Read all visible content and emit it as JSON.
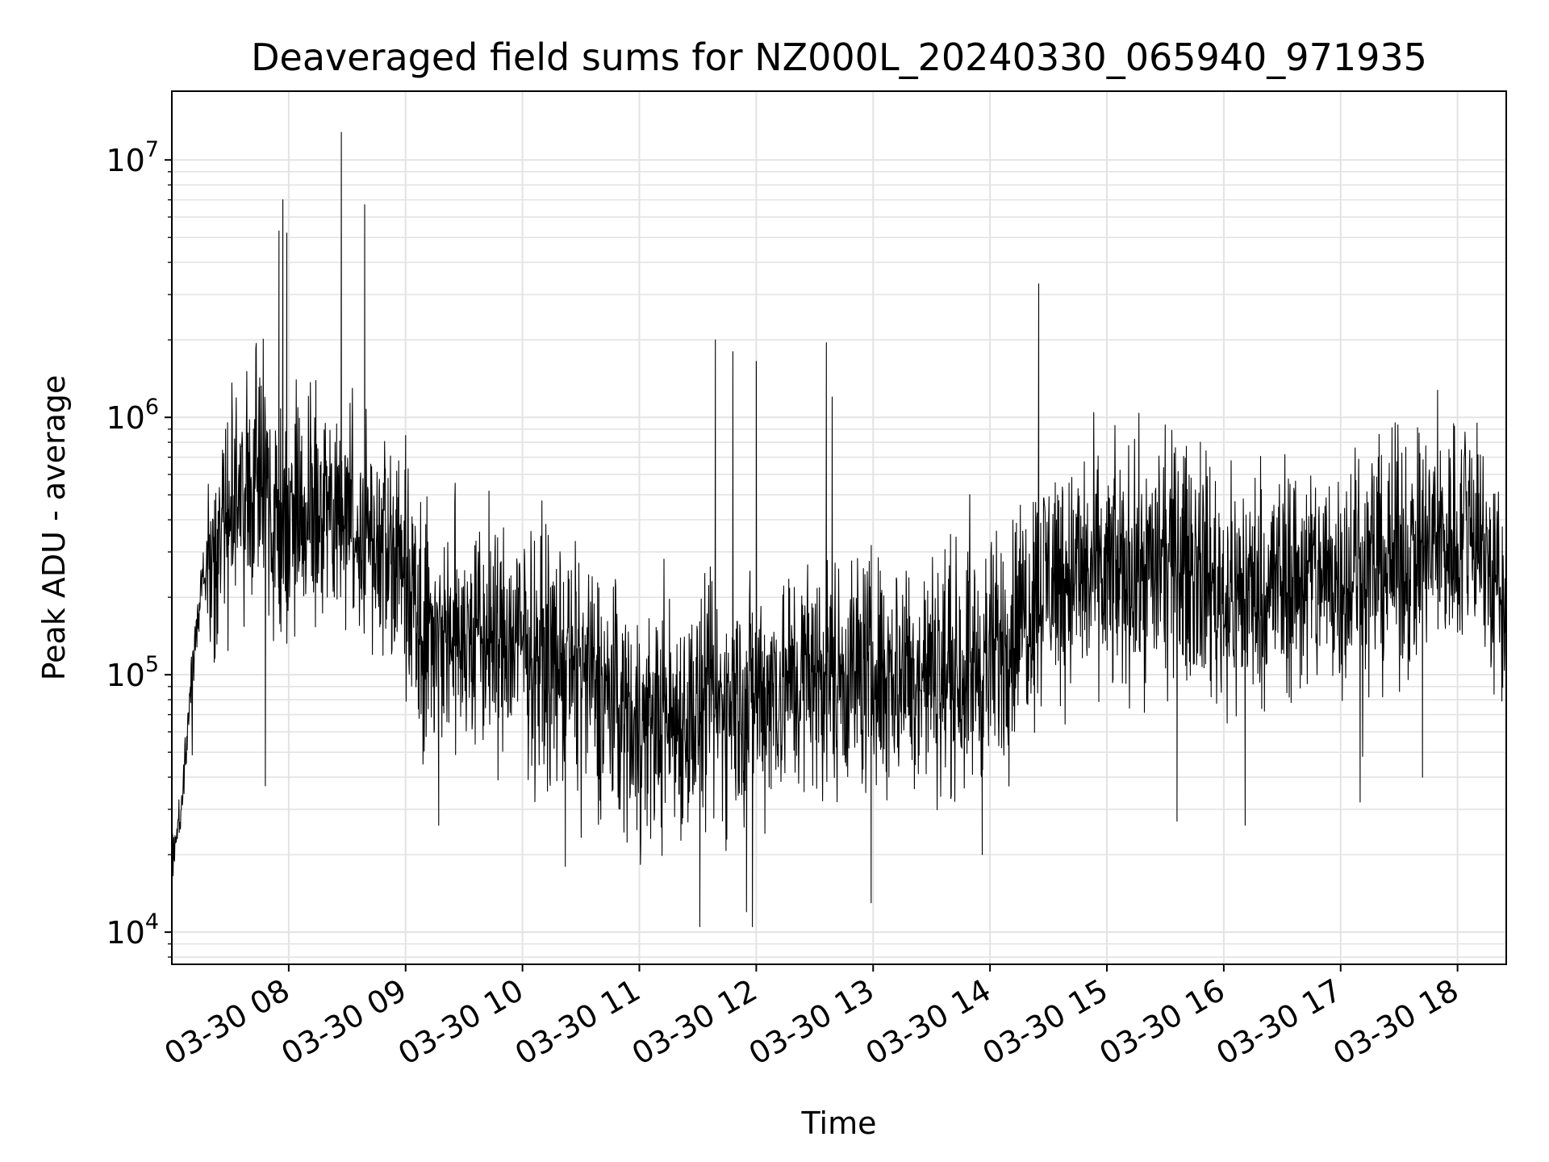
{
  "chart_data": {
    "type": "line",
    "title": "Deaveraged field sums for NZ000L_20240330_065940_971935",
    "xlabel": "Time",
    "ylabel": "Peak ADU - average",
    "yscale": "log",
    "ylim": [
      7500,
      18500000
    ],
    "xlim": [
      "2024-03-30 07:00",
      "2024-03-30 18:25"
    ],
    "grid": true,
    "x_ticks": [
      "03-30 08",
      "03-30 09",
      "03-30 10",
      "03-30 11",
      "03-30 12",
      "03-30 13",
      "03-30 14",
      "03-30 15",
      "03-30 16",
      "03-30 17",
      "03-30 18"
    ],
    "y_ticks": [
      {
        "value": 10000,
        "base": "10",
        "exp": "4"
      },
      {
        "value": 100000,
        "base": "10",
        "exp": "5"
      },
      {
        "value": 1000000,
        "base": "10",
        "exp": "6"
      },
      {
        "value": 10000000,
        "base": "10",
        "exp": "7"
      }
    ],
    "series": [
      {
        "color": "#000000",
        "baseline": [
          [
            "2024-03-30 07:00",
            20000
          ],
          [
            "2024-03-30 07:05",
            30000
          ],
          [
            "2024-03-30 07:10",
            100000
          ],
          [
            "2024-03-30 07:15",
            230000
          ],
          [
            "2024-03-30 07:20",
            250000
          ],
          [
            "2024-03-30 07:25",
            320000
          ],
          [
            "2024-03-30 07:30",
            600000
          ],
          [
            "2024-03-30 07:40",
            550000
          ],
          [
            "2024-03-30 08:00",
            420000
          ],
          [
            "2024-03-30 08:30",
            420000
          ],
          [
            "2024-03-30 09:00",
            280000
          ],
          [
            "2024-03-30 09:10",
            150000
          ],
          [
            "2024-03-30 10:00",
            130000
          ],
          [
            "2024-03-30 10:30",
            100000
          ],
          [
            "2024-03-30 11:00",
            65000
          ],
          [
            "2024-03-30 11:30",
            70000
          ],
          [
            "2024-03-30 12:00",
            85000
          ],
          [
            "2024-03-30 12:30",
            100000
          ],
          [
            "2024-03-30 13:00",
            105000
          ],
          [
            "2024-03-30 13:30",
            100000
          ],
          [
            "2024-03-30 14:00",
            110000
          ],
          [
            "2024-03-30 14:30",
            250000
          ],
          [
            "2024-03-30 15:00",
            240000
          ],
          [
            "2024-03-30 15:45",
            280000
          ],
          [
            "2024-03-30 16:00",
            200000
          ],
          [
            "2024-03-30 16:30",
            230000
          ],
          [
            "2024-03-30 17:00",
            250000
          ],
          [
            "2024-03-30 17:30",
            280000
          ],
          [
            "2024-03-30 18:00",
            350000
          ],
          [
            "2024-03-30 18:10",
            400000
          ],
          [
            "2024-03-30 18:20",
            200000
          ],
          [
            "2024-03-30 18:25",
            190000
          ]
        ],
        "spikes": [
          [
            "2024-03-30 07:55",
            5300000
          ],
          [
            "2024-03-30 07:57",
            7000000
          ],
          [
            "2024-03-30 07:59",
            5200000
          ],
          [
            "2024-03-30 08:27",
            12800000
          ],
          [
            "2024-03-30 08:39",
            6700000
          ],
          [
            "2024-03-30 09:00",
            850000
          ],
          [
            "2024-03-30 11:39",
            2000000
          ],
          [
            "2024-03-30 11:48",
            1800000
          ],
          [
            "2024-03-30 12:00",
            1650000
          ],
          [
            "2024-03-30 12:36",
            1950000
          ],
          [
            "2024-03-30 12:39",
            1200000
          ],
          [
            "2024-03-30 14:25",
            3300000
          ],
          [
            "2024-03-30 15:48",
            800000
          ],
          [
            "2024-03-30 18:10",
            950000
          ]
        ],
        "dips": [
          [
            "2024-03-30 07:48",
            37000
          ],
          [
            "2024-03-30 09:17",
            26000
          ],
          [
            "2024-03-30 10:22",
            18000
          ],
          [
            "2024-03-30 11:31",
            10500
          ],
          [
            "2024-03-30 11:55",
            12000
          ],
          [
            "2024-03-30 11:58",
            10500
          ],
          [
            "2024-03-30 12:59",
            13000
          ],
          [
            "2024-03-30 13:56",
            20000
          ],
          [
            "2024-03-30 15:36",
            27000
          ],
          [
            "2024-03-30 16:11",
            26000
          ],
          [
            "2024-03-30 17:10",
            32000
          ],
          [
            "2024-03-30 17:42",
            40000
          ]
        ]
      }
    ]
  }
}
